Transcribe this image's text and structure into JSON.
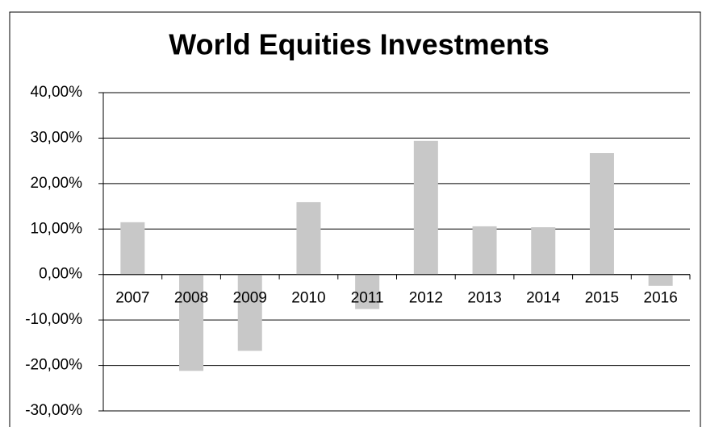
{
  "chart_data": {
    "type": "bar",
    "title": "World Equities Investments",
    "categories": [
      "2007",
      "2008",
      "2009",
      "2010",
      "2011",
      "2012",
      "2013",
      "2014",
      "2015",
      "2016"
    ],
    "values": [
      11.5,
      -21.2,
      -16.8,
      15.9,
      -7.6,
      29.4,
      10.6,
      10.4,
      26.7,
      -2.5
    ],
    "color": "#c8c8c8",
    "ylim": [
      -30,
      40
    ],
    "yticks": [
      {
        "value": -30,
        "label": "-30,00%"
      },
      {
        "value": -20,
        "label": "-20,00%"
      },
      {
        "value": -10,
        "label": "-10,00%"
      },
      {
        "value": 0,
        "label": "0,00%"
      },
      {
        "value": 10,
        "label": "10,00%"
      },
      {
        "value": 20,
        "label": "20,00%"
      },
      {
        "value": 30,
        "label": "30,00%"
      },
      {
        "value": 40,
        "label": "40,00%"
      }
    ],
    "grid": true
  }
}
